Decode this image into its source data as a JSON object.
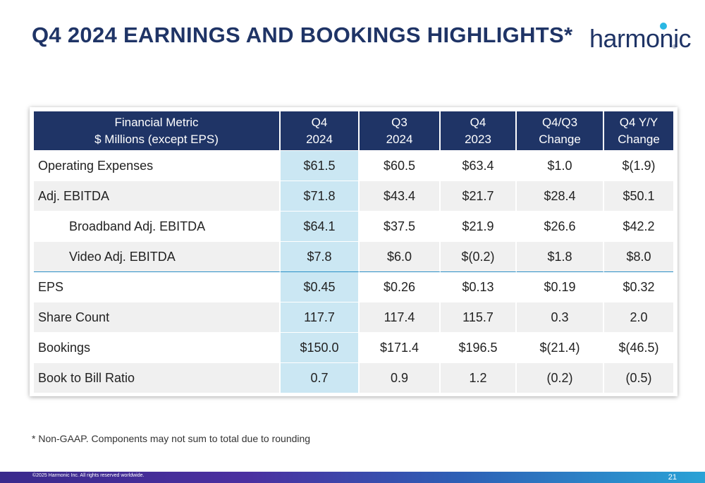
{
  "title": "Q4 2024 EARNINGS AND BOOKINGS HIGHLIGHTS*",
  "logo": {
    "text": "harmonic",
    "reg": "®"
  },
  "table": {
    "headers": [
      {
        "l1": "Financial Metric",
        "l2": "$ Millions (except EPS)"
      },
      {
        "l1": "Q4",
        "l2": "2024"
      },
      {
        "l1": "Q3",
        "l2": "2024"
      },
      {
        "l1": "Q4",
        "l2": "2023"
      },
      {
        "l1": "Q4/Q3",
        "l2": "Change"
      },
      {
        "l1": "Q4 Y/Y",
        "l2": "Change"
      }
    ],
    "rows": [
      [
        "Operating Expenses",
        "$61.5",
        "$60.5",
        "$63.4",
        "$1.0",
        "$(1.9)"
      ],
      [
        "Adj. EBITDA",
        "$71.8",
        "$43.4",
        "$21.7",
        "$28.4",
        "$50.1"
      ],
      [
        "Broadband Adj. EBITDA",
        "$64.1",
        "$37.5",
        "$21.9",
        "$26.6",
        "$42.2"
      ],
      [
        "Video Adj. EBITDA",
        "$7.8",
        "$6.0",
        "$(0.2)",
        "$1.8",
        "$8.0"
      ],
      [
        "EPS",
        "$0.45",
        "$0.26",
        "$0.13",
        "$0.19",
        "$0.32"
      ],
      [
        "Share Count",
        "117.7",
        "117.4",
        "115.7",
        "0.3",
        "2.0"
      ],
      [
        "Bookings",
        "$150.0",
        "$171.4",
        "$196.5",
        "$(21.4)",
        "$(46.5)"
      ],
      [
        "Book to Bill Ratio",
        "0.7",
        "0.9",
        "1.2",
        "(0.2)",
        "(0.5)"
      ]
    ]
  },
  "footnote": "* Non-GAAP. Components may not sum to total due to rounding",
  "footer": {
    "copyright": "©2025 Harmonic Inc. All rights reserved worldwide.",
    "page_number": "21"
  },
  "colors": {
    "title": "#1f3466",
    "header_bg": "#1f3466",
    "highlight_col": "#cbe7f3",
    "row_shade": "#f0f0f0",
    "separator": "#2a8fc6"
  }
}
